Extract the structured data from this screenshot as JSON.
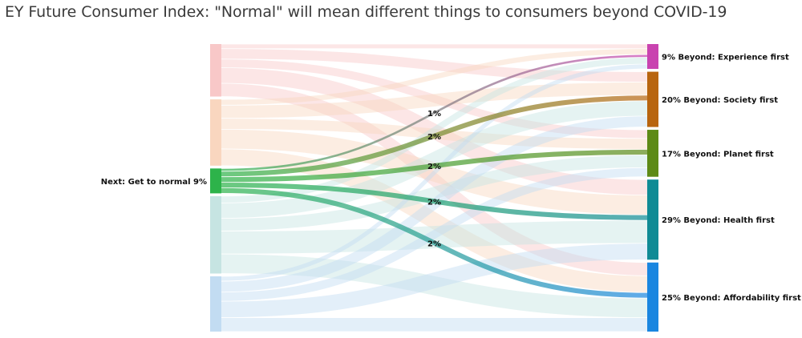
{
  "chart_data": {
    "type": "sankey",
    "title": "EY Future Consumer Index: \"Normal\" will mean different things to consumers beyond COVID-19",
    "left_nodes": [
      {
        "label": "",
        "value": 19,
        "color": "#f8c8c8"
      },
      {
        "label": "",
        "value": 24,
        "color": "#f9d6bf"
      },
      {
        "label": "Next: Get to normal 9%",
        "value": 9,
        "color": "#2db34a",
        "highlighted": true
      },
      {
        "label": "",
        "value": 28,
        "color": "#c6e4e2"
      },
      {
        "label": "",
        "value": 20,
        "color": "#c2dcf2"
      }
    ],
    "right_nodes": [
      {
        "label": "9% Beyond: Experience first",
        "value": 9,
        "color": "#c943b0"
      },
      {
        "label": "20% Beyond: Society first",
        "value": 20,
        "color": "#b8650f"
      },
      {
        "label": "17% Beyond: Planet first",
        "value": 17,
        "color": "#5d8a16"
      },
      {
        "label": "29% Beyond: Health first",
        "value": 29,
        "color": "#0f8b95"
      },
      {
        "label": "25% Beyond: Affordability first",
        "value": 25,
        "color": "#1a86e0"
      }
    ],
    "highlighted_links": [
      {
        "target": 0,
        "value": 1,
        "label": "1%"
      },
      {
        "target": 1,
        "value": 2,
        "label": "2%"
      },
      {
        "target": 2,
        "value": 2,
        "label": "2%"
      },
      {
        "target": 3,
        "value": 2,
        "label": "2%"
      },
      {
        "target": 4,
        "value": 2,
        "label": "2%"
      }
    ]
  }
}
